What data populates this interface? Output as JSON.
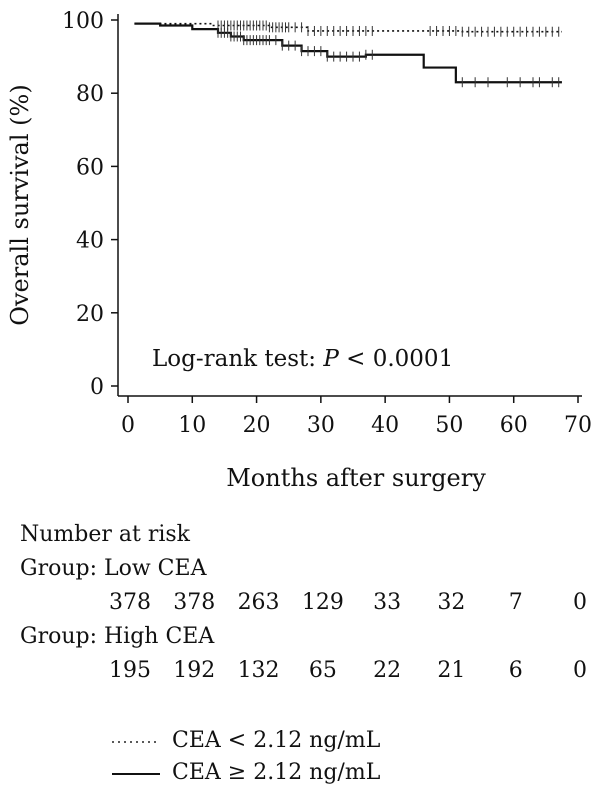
{
  "chart_data": {
    "type": "line",
    "title": "",
    "xlabel": "Months after surgery",
    "ylabel": "Overall survival (%)",
    "xlim": [
      0,
      70
    ],
    "ylim": [
      0,
      100
    ],
    "xticks": [
      "0",
      "10",
      "20",
      "30",
      "40",
      "50",
      "60",
      "70"
    ],
    "yticks": [
      "0",
      "20",
      "40",
      "60",
      "80",
      "100"
    ],
    "annotation": {
      "prefix": "Log-rank test: ",
      "p": "P",
      "suffix": " < 0.0001"
    },
    "series": [
      {
        "name": "CEA < 2.12 ng/mL",
        "style": "dotted",
        "steps": [
          [
            1,
            99
          ],
          [
            13,
            98.5
          ],
          [
            22,
            98
          ],
          [
            28,
            97
          ],
          [
            52,
            96.8
          ],
          [
            67.5,
            96.8
          ]
        ],
        "censor": [
          14,
          14.5,
          15,
          15.5,
          16,
          16.5,
          17,
          17.5,
          18,
          18.5,
          19,
          19.5,
          20,
          20.5,
          21,
          21.5,
          22,
          22.5,
          23,
          23.5,
          24,
          24.5,
          25,
          26,
          27,
          28,
          29,
          30,
          31,
          32,
          33,
          34,
          35,
          36,
          37,
          38,
          47,
          48,
          49,
          50,
          51,
          52,
          53,
          54,
          55,
          56,
          57,
          58,
          59,
          60,
          61,
          62,
          63,
          64,
          65,
          66,
          67
        ]
      },
      {
        "name": "CEA ≥ 2.12 ng/mL",
        "style": "solid",
        "steps": [
          [
            1,
            99
          ],
          [
            5,
            98.5
          ],
          [
            10,
            97.5
          ],
          [
            14,
            96.5
          ],
          [
            16,
            95.5
          ],
          [
            18,
            94.5
          ],
          [
            24,
            93
          ],
          [
            27,
            91.5
          ],
          [
            31,
            90
          ],
          [
            37,
            90.5
          ],
          [
            43,
            90.5
          ],
          [
            46,
            87
          ],
          [
            51,
            83
          ],
          [
            67.5,
            83
          ]
        ],
        "censor": [
          14,
          14.5,
          15,
          15.5,
          16,
          16.5,
          17,
          17.5,
          18,
          18.5,
          19,
          19.5,
          20,
          20.5,
          21,
          21.5,
          22,
          23,
          24,
          25,
          26,
          27,
          28,
          29,
          30,
          31,
          32,
          33,
          34,
          35,
          36,
          37,
          38,
          52,
          54,
          56,
          59,
          61,
          63,
          64,
          66,
          67
        ]
      }
    ]
  },
  "risk_table": {
    "title": "Number at risk",
    "groups": [
      {
        "label": "Group: Low CEA",
        "values": [
          "378",
          "378",
          "263",
          "129",
          "33",
          "32",
          "7",
          "0"
        ]
      },
      {
        "label": "Group: High CEA",
        "values": [
          "195",
          "192",
          "132",
          "65",
          "22",
          "21",
          "6",
          "0"
        ]
      }
    ]
  },
  "legend": [
    {
      "label": "CEA < 2.12 ng/mL",
      "style": "dotted"
    },
    {
      "label": "CEA ≥ 2.12 ng/mL",
      "style": "solid"
    }
  ]
}
